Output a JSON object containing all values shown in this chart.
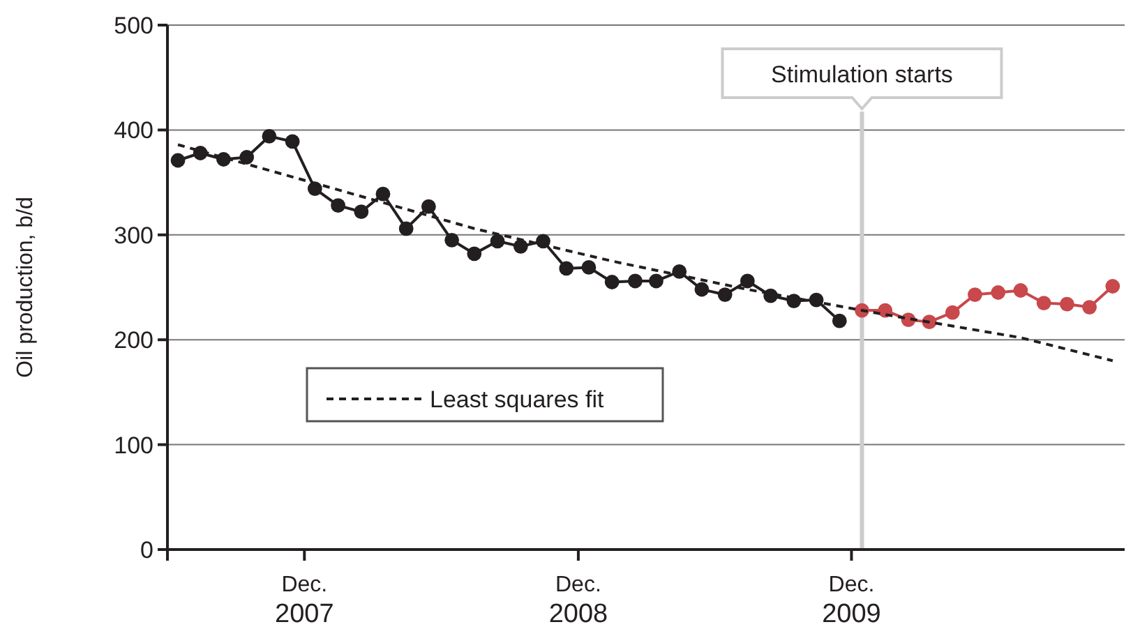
{
  "chart_data": {
    "type": "line",
    "ylabel": "Oil production, b/d",
    "xlim": [
      "2007-06-01",
      "2010-12-01"
    ],
    "xticks": [
      {
        "value": "2007-12-01",
        "label": "Dec.\n2007"
      },
      {
        "value": "2008-12-01",
        "label": "Dec.\n2008"
      },
      {
        "value": "2009-12-01",
        "label": "Dec.\n2009"
      }
    ],
    "ylim": [
      0,
      500
    ],
    "yticks": [
      0,
      100,
      200,
      300,
      400,
      500
    ],
    "grid": "y",
    "marker": "circle",
    "legend": "bottom left",
    "series": [
      {
        "color": "#231f20",
        "x": [
          "2007-06-15",
          "2007-07-15",
          "2007-08-15",
          "2007-09-15",
          "2007-10-15",
          "2007-11-15",
          "2007-12-15",
          "2008-01-15",
          "2008-02-15",
          "2008-03-15",
          "2008-04-15",
          "2008-05-15",
          "2008-06-15",
          "2008-07-15",
          "2008-08-15",
          "2008-09-15",
          "2008-10-15",
          "2008-11-15",
          "2008-12-15",
          "2009-01-15",
          "2009-02-15",
          "2009-03-15",
          "2009-04-15",
          "2009-05-15",
          "2009-06-15",
          "2009-07-15",
          "2009-08-15",
          "2009-09-15",
          "2009-10-15",
          "2009-11-15"
        ],
        "values": [
          371,
          378,
          372,
          374,
          394,
          389,
          344,
          328,
          322,
          339,
          306,
          327,
          295,
          282,
          294,
          289,
          294,
          268,
          269,
          255,
          256,
          256,
          265,
          248,
          243,
          256,
          242,
          237,
          238,
          218
        ]
      },
      {
        "color": "#c8484b",
        "x": [
          "2009-12-15",
          "2010-01-15",
          "2010-02-15",
          "2010-03-15",
          "2010-04-15",
          "2010-05-15",
          "2010-06-15",
          "2010-07-15",
          "2010-08-15",
          "2010-09-15",
          "2010-10-15",
          "2010-11-15"
        ],
        "values": [
          228,
          228,
          219,
          217,
          226,
          243,
          245,
          247,
          235,
          234,
          231,
          251
        ]
      },
      {
        "name": "Least squares fit",
        "color": "#231f20",
        "line_style": "dashed",
        "marker": "none",
        "x": [
          "2007-06-15",
          "2008-01-15",
          "2008-07-15",
          "2009-01-15",
          "2009-07-15",
          "2010-01-15",
          "2010-07-15",
          "2010-11-15"
        ],
        "values": [
          386,
          343,
          306,
          275,
          248,
          224,
          202,
          180
        ]
      }
    ],
    "ref_lines": [
      {
        "axis": "x",
        "value": "2009-12-15",
        "label": "Stimulation starts",
        "color": "#cccccc"
      }
    ]
  }
}
